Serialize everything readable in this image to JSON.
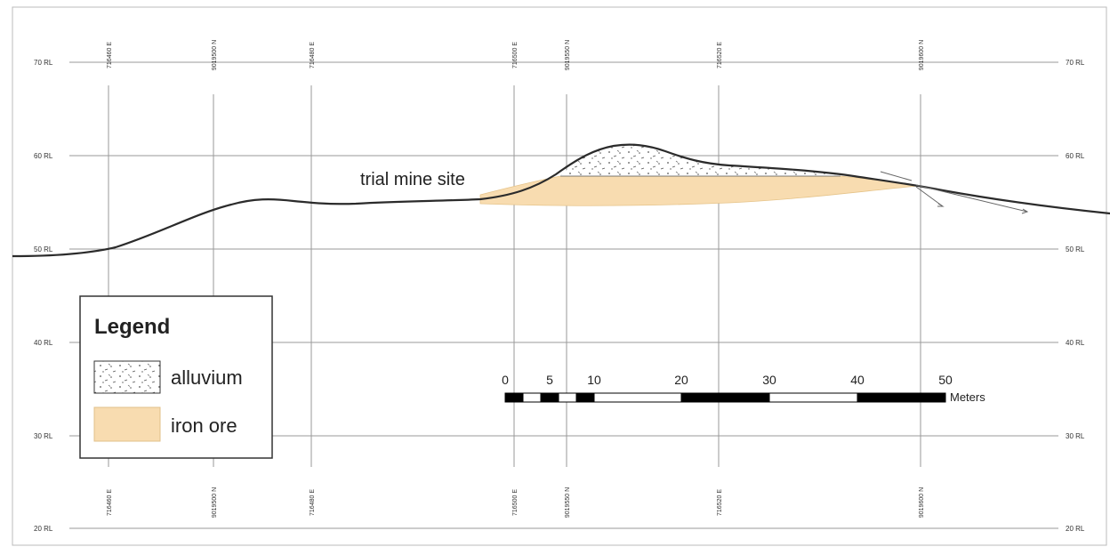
{
  "section": {
    "rl_levels": [
      "70 RL",
      "60 RL",
      "50 RL",
      "40 RL",
      "30 RL",
      "20 RL"
    ],
    "grid_lines": [
      {
        "top": "716460 E",
        "bottom": "716460 E"
      },
      {
        "top": "9019500 N",
        "bottom": "9019500 N"
      },
      {
        "top": "716480 E",
        "bottom": "716480 E"
      },
      {
        "top": "716500 E",
        "bottom": "716500 E"
      },
      {
        "top": "9019550 N",
        "bottom": "9019550 N"
      },
      {
        "top": "716520 E",
        "bottom": "716520 E"
      },
      {
        "top": "9019600 N",
        "bottom": "9019600 N"
      }
    ],
    "site_label": "trial mine site",
    "colors": {
      "iron_ore": "#f8dcb0",
      "alluvium": "#ffffff",
      "terrain": "#2b2b2b",
      "grid": "#9a9a9a"
    }
  },
  "scale_bar": {
    "numbers": [
      "0",
      "5",
      "10",
      "20",
      "30",
      "40",
      "50"
    ],
    "unit": "Meters"
  },
  "legend": {
    "title": "Legend",
    "items": [
      {
        "label": "alluvium",
        "swatch": "alluvium-pattern"
      },
      {
        "label": "iron ore",
        "swatch": "iron-ore-fill"
      }
    ]
  }
}
